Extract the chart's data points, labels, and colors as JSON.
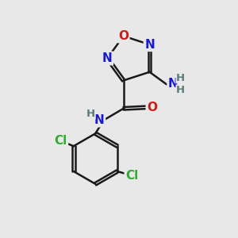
{
  "bg_color": "#e8e8e8",
  "bond_color": "#1a1a1a",
  "bond_width": 1.8,
  "atom_colors": {
    "C": "#1a1a1a",
    "N": "#1a1acc",
    "O": "#cc1a1a",
    "H": "#5a7a7a",
    "Cl": "#33aa33"
  },
  "font_size": 11,
  "font_size_h": 9.5
}
